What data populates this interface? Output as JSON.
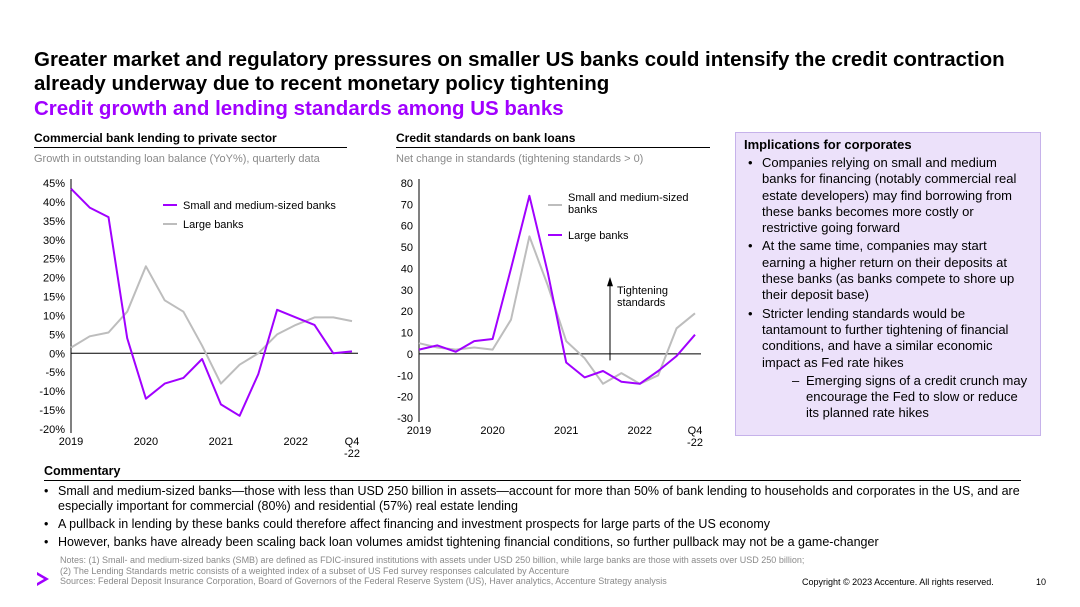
{
  "header": {
    "title": "Greater market and regulatory pressures on smaller US banks could intensify the credit contraction already underway due to recent monetary policy tightening",
    "subtitle": "Credit growth and lending standards among US banks"
  },
  "colors": {
    "accent": "#a100ff",
    "gray_series": "#bdbdbd",
    "panel_bg": "#ece1fa"
  },
  "chart_data": [
    {
      "type": "line",
      "title": "Commercial bank lending to private sector",
      "subtitle": "Growth in outstanding loan balance (YoY%), quarterly data",
      "x_labels": [
        "2019",
        "2020",
        "2021",
        "2022",
        "Q4\n-22"
      ],
      "y_ticks": [
        "45%",
        "40%",
        "35%",
        "30%",
        "25%",
        "20%",
        "15%",
        "10%",
        "5%",
        "0%",
        "-5%",
        "-10%",
        "-15%",
        "-20%"
      ],
      "ylim": [
        -20,
        45
      ],
      "grid": false,
      "legend_position": "top-right",
      "series": [
        {
          "name": "Small and medium-sized banks",
          "color": "#a100ff",
          "x": [
            2019.0,
            2019.25,
            2019.5,
            2019.75,
            2020.0,
            2020.25,
            2020.5,
            2020.75,
            2021.0,
            2021.25,
            2021.5,
            2021.75,
            2022.0,
            2022.25,
            2022.5,
            2022.75
          ],
          "values": [
            43.5,
            38.5,
            36,
            4,
            -12,
            -8,
            -6.5,
            -1.5,
            -13.5,
            -16.5,
            -5.5,
            11.5,
            9.5,
            7.5,
            0,
            0.5
          ]
        },
        {
          "name": "Large banks",
          "color": "#bdbdbd",
          "x": [
            2019.0,
            2019.25,
            2019.5,
            2019.75,
            2020.0,
            2020.25,
            2020.5,
            2020.75,
            2021.0,
            2021.25,
            2021.5,
            2021.75,
            2022.0,
            2022.25,
            2022.5,
            2022.75
          ],
          "values": [
            1.5,
            4.5,
            5.5,
            11,
            23,
            14,
            11,
            2,
            -8,
            -3,
            0,
            5,
            7.5,
            9.5,
            9.5,
            8.5
          ]
        }
      ]
    },
    {
      "type": "line",
      "title": "Credit standards on bank loans",
      "subtitle": "Net change in standards (tightening standards > 0)",
      "x_labels": [
        "2019",
        "2020",
        "2021",
        "2022",
        "Q4\n-22"
      ],
      "y_ticks": [
        "80",
        "70",
        "60",
        "50",
        "40",
        "30",
        "20",
        "10",
        "0",
        "-10",
        "-20",
        "-30"
      ],
      "ylim": [
        -30,
        80
      ],
      "grid": false,
      "legend_position": "top-right",
      "annotation": "Tightening standards",
      "series": [
        {
          "name": "Small and medium-sized banks",
          "color": "#bdbdbd",
          "x": [
            2019.0,
            2019.25,
            2019.5,
            2019.75,
            2020.0,
            2020.25,
            2020.5,
            2020.75,
            2021.0,
            2021.25,
            2021.5,
            2021.75,
            2022.0,
            2022.25,
            2022.5,
            2022.75
          ],
          "values": [
            5,
            3,
            2,
            3,
            2,
            16,
            55,
            32,
            6,
            -2,
            -14,
            -9,
            -14,
            -10,
            12,
            19
          ]
        },
        {
          "name": "Large banks",
          "color": "#a100ff",
          "x": [
            2019.0,
            2019.25,
            2019.5,
            2019.75,
            2020.0,
            2020.25,
            2020.5,
            2020.75,
            2021.0,
            2021.25,
            2021.5,
            2021.75,
            2022.0,
            2022.25,
            2022.5,
            2022.75
          ],
          "values": [
            2,
            4,
            1,
            6,
            7,
            40,
            74,
            38,
            -4,
            -11,
            -8,
            -13,
            -14,
            -8,
            -1,
            9
          ]
        }
      ]
    }
  ],
  "implications": {
    "title": "Implications for corporates",
    "items": [
      "Companies relying on small and medium banks for financing (notably commercial real estate developers) may find borrowing from these banks becomes more costly or restrictive going forward",
      "At the same time, companies may start earning a higher return on their deposits at these banks (as banks compete to shore up their deposit base)",
      "Stricter lending standards would be tantamount to further tightening of financial conditions, and have a similar economic impact as Fed rate hikes"
    ],
    "subitem": "Emerging signs of a credit crunch may encourage the Fed to slow or reduce its planned rate hikes"
  },
  "commentary": {
    "title": "Commentary",
    "items": [
      "Small and medium-sized banks—those with less than USD 250 billion in assets—account for more than 50% of bank lending to households and corporates in the US, and are especially important for commercial (80%) and residential (57%) real estate lending",
      "A pullback in lending by these banks could therefore affect financing and investment prospects for large parts of the US economy",
      "However, banks have already been scaling back loan volumes amidst tightening financial conditions, so further pullback may not be a game-changer"
    ]
  },
  "footer": {
    "notes1": "Notes: (1) Small- and medium-sized banks (SMB) are defined as FDIC-insured institutions with assets under USD 250 billion, while large banks are those with assets over USD 250 billion;",
    "notes2": "(2) The Lending Standards metric consists of a weighted index of a subset of US Fed survey responses calculated by Accenture",
    "sources": "Sources: Federal Deposit Insurance Corporation, Board of Governors of the Federal Reserve System (US), Haver analytics,  Accenture Strategy analysis",
    "copyright": "Copyright © 2023 Accenture. All rights reserved.",
    "page_number": "10",
    "logo_icon": "accenture-chevron-icon"
  }
}
